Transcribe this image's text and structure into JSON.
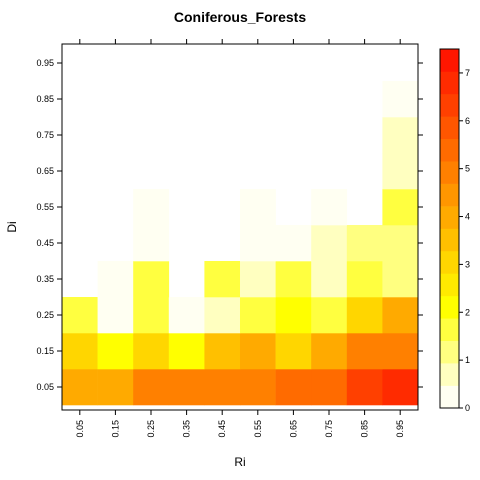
{
  "chart_data": {
    "type": "heatmap",
    "title": "Coniferous_Forests",
    "xlabel": "Ri",
    "ylabel": "Di",
    "x": [
      "0.05",
      "0.15",
      "0.25",
      "0.35",
      "0.45",
      "0.55",
      "0.65",
      "0.75",
      "0.85",
      "0.95"
    ],
    "y": [
      "0.05",
      "0.15",
      "0.25",
      "0.35",
      "0.45",
      "0.55",
      "0.65",
      "0.75",
      "0.85",
      "0.95"
    ],
    "xlim": [
      0,
      1
    ],
    "ylim": [
      0,
      1
    ],
    "values": [
      [
        4.1,
        4.1,
        4.9,
        4.9,
        4.9,
        4.9,
        5.3,
        5.3,
        6.1,
        6.9
      ],
      [
        3.0,
        2.3,
        3.0,
        2.3,
        3.4,
        3.8,
        3.0,
        3.8,
        4.8,
        4.9
      ],
      [
        1.6,
        0.0,
        1.6,
        0.0,
        0.8,
        1.6,
        2.2,
        1.6,
        3.2,
        4.1
      ],
      [
        null,
        0.1,
        1.6,
        null,
        1.6,
        0.7,
        1.6,
        0.7,
        1.6,
        1.3
      ],
      [
        null,
        null,
        0.1,
        null,
        null,
        0.1,
        0.1,
        0.5,
        1.0,
        1.3
      ],
      [
        null,
        null,
        0.1,
        null,
        null,
        0.1,
        null,
        0.1,
        null,
        1.6
      ],
      [
        null,
        null,
        null,
        null,
        null,
        null,
        null,
        null,
        null,
        0.8
      ],
      [
        null,
        null,
        null,
        null,
        null,
        null,
        null,
        null,
        null,
        0.5
      ],
      [
        null,
        null,
        null,
        null,
        null,
        null,
        null,
        null,
        null,
        0.0
      ],
      [
        null,
        null,
        null,
        null,
        null,
        null,
        null,
        null,
        null,
        null
      ]
    ],
    "colorbar": {
      "min": 0,
      "max": 7.5,
      "ticks": [
        "0",
        "1",
        "2",
        "3",
        "4",
        "5",
        "6",
        "7"
      ],
      "colors": [
        "#FFFFF2",
        "#FFFFC0",
        "#FFFF80",
        "#FFFF40",
        "#FFFF00",
        "#FFEA00",
        "#FFD600",
        "#FFC000",
        "#FFAA00",
        "#FF9600",
        "#FF8000",
        "#FF6B00",
        "#FF5600",
        "#FF4000",
        "#FF2B00",
        "#FF1600"
      ]
    }
  }
}
